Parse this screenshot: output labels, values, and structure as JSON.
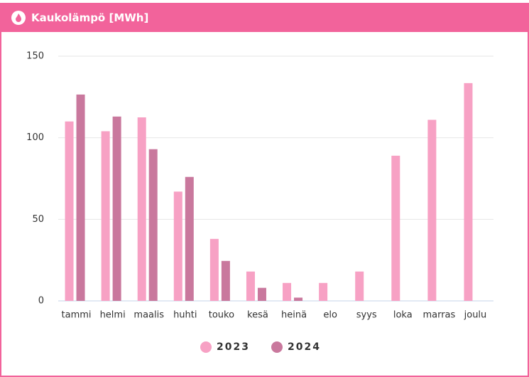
{
  "chart_data": {
    "type": "bar",
    "title": "Kaukolämpö [MWh]",
    "categories": [
      "tammi",
      "helmi",
      "maalis",
      "huhti",
      "touko",
      "kesä",
      "heinä",
      "elo",
      "syys",
      "loka",
      "marras",
      "joulu"
    ],
    "series": [
      {
        "name": "2023",
        "color": "#f7a1c4",
        "values": [
          110,
          104,
          112.5,
          67,
          38,
          18,
          11,
          11,
          18,
          89,
          111,
          133.5
        ]
      },
      {
        "name": "2024",
        "color": "#c9789d",
        "values": [
          126.5,
          113,
          93,
          76,
          24.5,
          8,
          2,
          null,
          null,
          null,
          null,
          null
        ]
      }
    ],
    "ylim": [
      0,
      150
    ],
    "yticks": [
      0,
      50,
      100,
      150
    ],
    "grid": true,
    "legend": "bottom"
  }
}
